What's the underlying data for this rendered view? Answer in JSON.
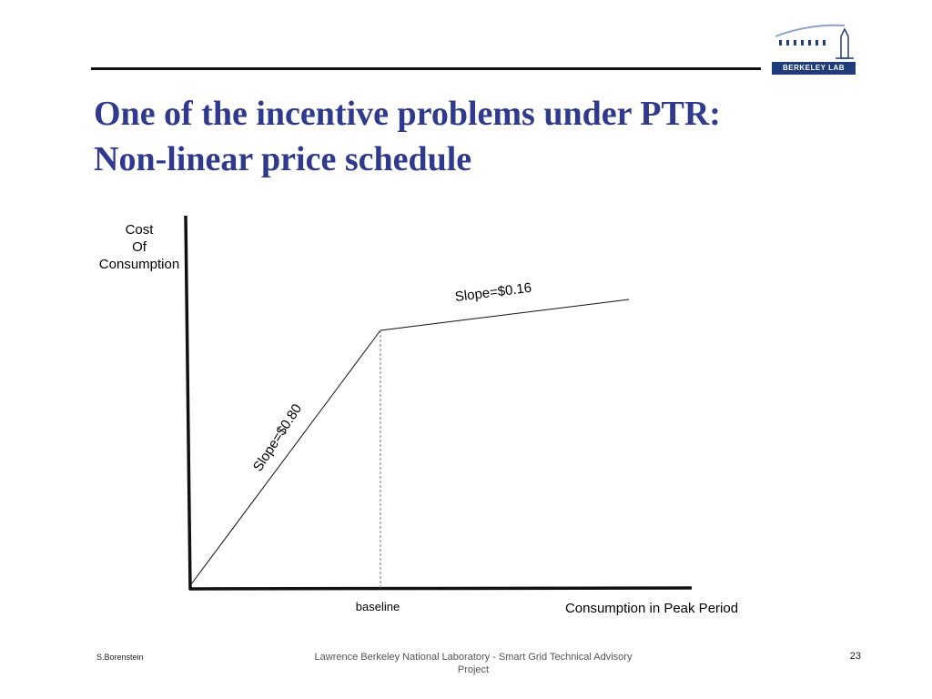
{
  "slide": {
    "title_line1": "One of the incentive problems under PTR:",
    "title_line2": "Non-linear price schedule"
  },
  "logo": {
    "text": "BERKELEY LAB",
    "icon": "berkeley-lab-logo-icon",
    "color": "#1f3b7a"
  },
  "diagram": {
    "y_axis_label": [
      "Cost",
      "Of",
      "Consumption"
    ],
    "x_axis_label": "Consumption in Peak Period",
    "baseline_label": "baseline",
    "segment_low_label": "Slope=$0.80",
    "segment_high_label": "Slope=$0.16",
    "title_color": "#2f3a8f"
  },
  "footer": {
    "author": "S.Borenstein",
    "center_line1": "Lawrence Berkeley National Laboratory - Smart Grid Technical Advisory",
    "center_line2": "Project",
    "page_number": "23"
  }
}
